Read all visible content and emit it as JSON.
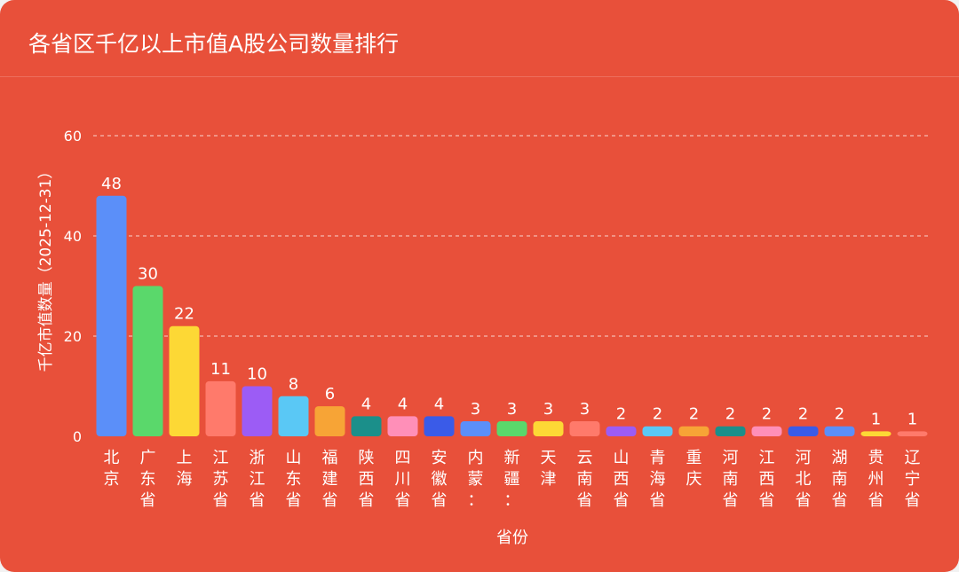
{
  "chart_data": {
    "type": "bar",
    "title": "各省区千亿以上市值A股公司数量排行",
    "xlabel": "省份",
    "ylabel": "千亿市值数量（2025-12-31）",
    "ylim": [
      0,
      60
    ],
    "yticks": [
      0,
      20,
      40,
      60
    ],
    "grid": true,
    "categories": [
      "北京",
      "广东省",
      "上海",
      "江苏省",
      "浙江省",
      "山东省",
      "福建省",
      "陕西省",
      "四川省",
      "安徽省",
      "内蒙：",
      "新疆：",
      "天津",
      "云南省",
      "山西省",
      "青海省",
      "重庆",
      "河南省",
      "江西省",
      "河北省",
      "湖南省",
      "贵州省",
      "辽宁省"
    ],
    "values": [
      48,
      30,
      22,
      11,
      10,
      8,
      6,
      4,
      4,
      4,
      3,
      3,
      3,
      3,
      2,
      2,
      2,
      2,
      2,
      2,
      2,
      1,
      1
    ],
    "colors": [
      "#5b8ff9",
      "#5ad86b",
      "#fdd835",
      "#ff7a6b",
      "#9c5cf5",
      "#5ac8f5",
      "#f7a436",
      "#1b8f8a",
      "#ff8fb8",
      "#3a5be8",
      "#5b8ff9",
      "#5ad86b",
      "#fdd835",
      "#ff7a6b",
      "#9c5cf5",
      "#5ac8f5",
      "#f7a436",
      "#1b8f8a",
      "#ff8fb8",
      "#3a5be8",
      "#5b8ff9",
      "#fdd835",
      "#ff7a6b"
    ]
  }
}
